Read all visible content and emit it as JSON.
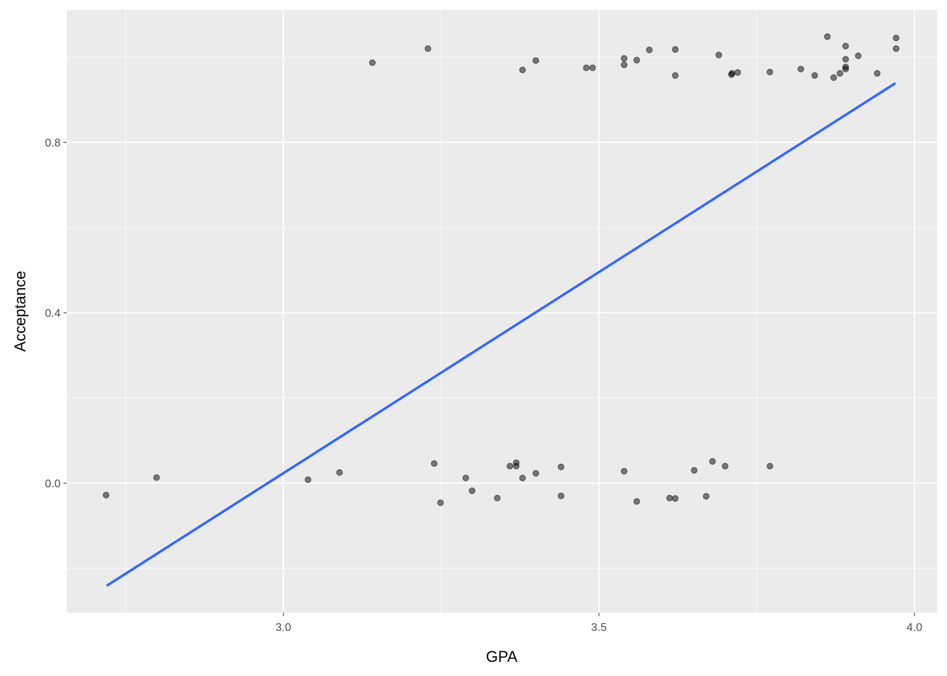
{
  "chart_data": {
    "type": "scatter",
    "x_label": "GPA",
    "y_label": "Acceptance",
    "xlim": [
      2.657,
      4.036
    ],
    "ylim": [
      -0.304,
      1.111
    ],
    "xticks": [
      {
        "value": 3,
        "label": "3.0"
      },
      {
        "value": 3.5,
        "label": "3.5"
      },
      {
        "value": 4,
        "label": "4.0"
      }
    ],
    "yticks": [
      {
        "value": 0,
        "label": "0.0"
      },
      {
        "value": 0.4,
        "label": "0.4"
      },
      {
        "value": 0.8,
        "label": "0.8"
      }
    ],
    "grid": true,
    "minor_grid": true,
    "series": [
      {
        "kind": "points",
        "color": "#000000",
        "opacity": 0.5,
        "x": [
          3.141,
          3.229,
          3.379,
          3.4,
          3.48,
          3.49,
          3.54,
          3.54,
          3.56,
          3.58,
          3.621,
          3.621,
          3.69,
          3.71,
          3.711,
          3.72,
          3.771,
          3.82,
          3.842,
          3.862,
          3.872,
          3.882,
          3.891,
          3.891,
          3.891,
          3.891,
          3.911,
          3.941,
          3.971,
          3.971,
          2.719,
          2.799,
          3.039,
          3.089,
          3.239,
          3.249,
          3.289,
          3.299,
          3.339,
          3.359,
          3.369,
          3.369,
          3.379,
          3.4,
          3.44,
          3.44,
          3.54,
          3.56,
          3.612,
          3.621,
          3.651,
          3.67,
          3.68,
          3.7,
          3.771
        ],
        "values": [
          0.987,
          1.02,
          0.97,
          0.992,
          0.975,
          0.975,
          0.997,
          0.982,
          0.993,
          1.017,
          1.018,
          0.957,
          1.005,
          0.959,
          0.962,
          0.964,
          0.965,
          0.972,
          0.957,
          1.048,
          0.952,
          0.962,
          1.026,
          0.995,
          0.977,
          0.972,
          1.003,
          0.962,
          1.045,
          1.02,
          -0.028,
          0.013,
          0.008,
          0.025,
          0.046,
          -0.046,
          0.012,
          -0.018,
          -0.035,
          0.04,
          0.048,
          0.04,
          0.012,
          0.023,
          0.038,
          -0.03,
          0.028,
          -0.043,
          -0.035,
          -0.036,
          0.03,
          -0.031,
          0.051,
          0.04,
          0.04
        ]
      },
      {
        "kind": "line",
        "color": "#3366ff",
        "x": [
          2.72,
          3.97
        ],
        "values": [
          -0.241,
          0.939
        ]
      }
    ]
  }
}
